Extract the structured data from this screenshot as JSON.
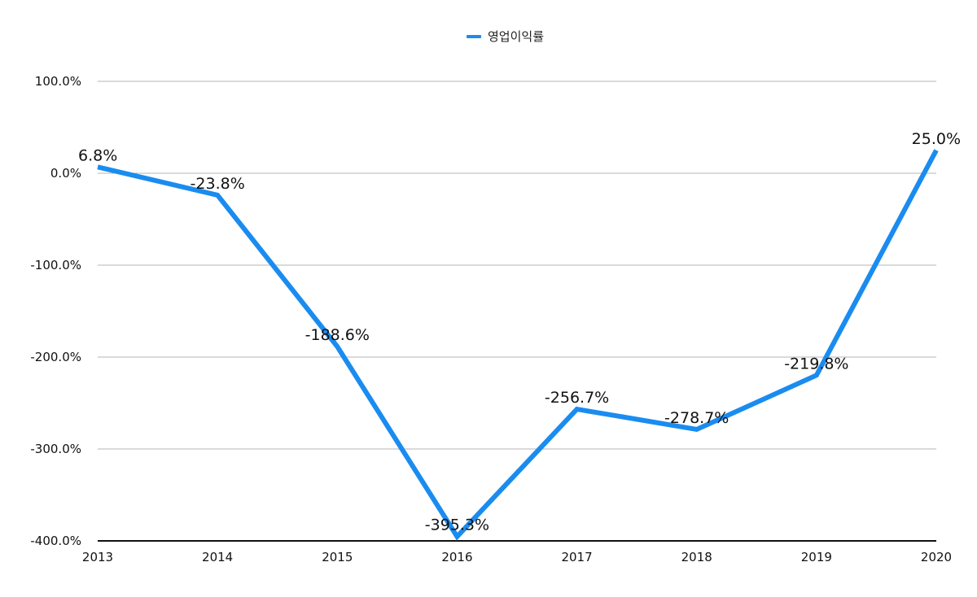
{
  "chart_data": {
    "type": "line",
    "categories": [
      "2013",
      "2014",
      "2015",
      "2016",
      "2017",
      "2018",
      "2019",
      "2020"
    ],
    "series": [
      {
        "name": "영업이익률",
        "values": [
          6.8,
          -23.8,
          -188.6,
          -395.3,
          -256.7,
          -278.7,
          -219.8,
          25.0
        ],
        "labels": [
          "6.8%",
          "-23.8%",
          "-188.6%",
          "-395.3%",
          "-256.7%",
          "-278.7%",
          "-219.8%",
          "25.0%"
        ],
        "color": "#1a8cf0"
      }
    ],
    "y_ticks": [
      {
        "value": 100,
        "label": "100.0%"
      },
      {
        "value": 0,
        "label": "0.0%"
      },
      {
        "value": -100,
        "label": "-100.0%"
      },
      {
        "value": -200,
        "label": "-200.0%"
      },
      {
        "value": -300,
        "label": "-300.0%"
      },
      {
        "value": -400,
        "label": "-400.0%"
      }
    ],
    "ylim": [
      -400,
      100
    ],
    "grid": true,
    "legend_position": "top-center",
    "title": "",
    "xlabel": "",
    "ylabel": ""
  }
}
